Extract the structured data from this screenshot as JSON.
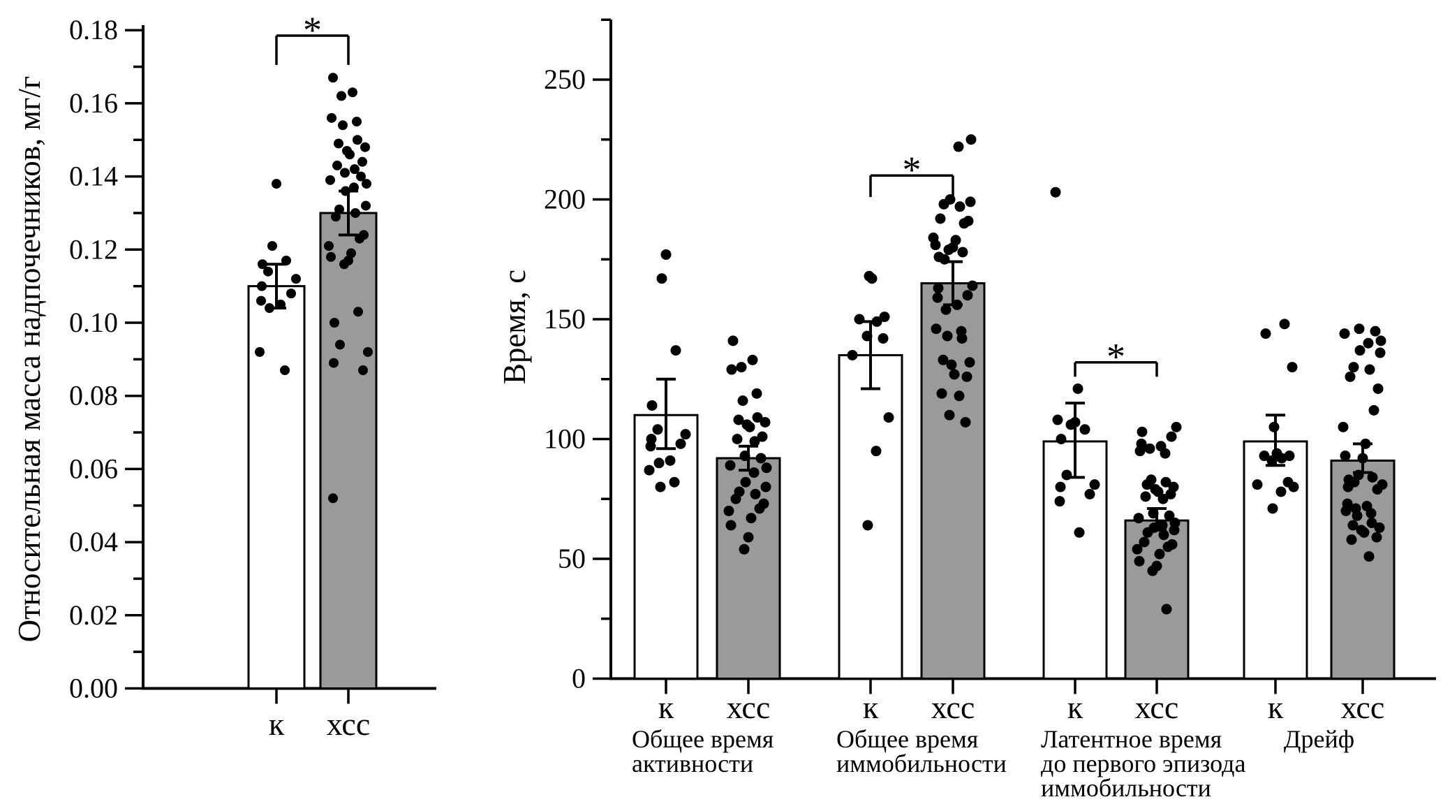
{
  "figure": {
    "colors": {
      "background": "#ffffff",
      "axis": "#000000",
      "text": "#000000",
      "dot": "#000000",
      "bar_stroke": "#000000",
      "bar_control_fill": "#ffffff",
      "bar_stress_fill": "#9a9a9a"
    }
  },
  "chart_data": [
    {
      "type": "bar",
      "id": "adrenal-mass-chart",
      "title": "",
      "xlabel": "",
      "ylabel": "Относительная масса надпочечников, мг/г",
      "ylim": [
        0,
        0.18
      ],
      "yticks_major_step": 0.02,
      "yticks_minor_step": 0.01,
      "ytick_decimals": 2,
      "grid": false,
      "legend": null,
      "groups": [
        {
          "caption_lines": [],
          "caption_align": "left",
          "bars": [
            {
              "category": "к",
              "style": "control",
              "mean": 0.11,
              "err_low": 0.104,
              "err_high": 0.116,
              "points": [
                0.138,
                0.121,
                0.117,
                0.116,
                0.114,
                0.112,
                0.11,
                0.108,
                0.106,
                0.105,
                0.104,
                0.092,
                0.087
              ]
            },
            {
              "category": "хсс",
              "style": "stress",
              "mean": 0.13,
              "err_low": 0.124,
              "err_high": 0.136,
              "points": [
                0.167,
                0.163,
                0.162,
                0.156,
                0.155,
                0.154,
                0.15,
                0.149,
                0.148,
                0.147,
                0.146,
                0.144,
                0.143,
                0.142,
                0.141,
                0.14,
                0.139,
                0.138,
                0.137,
                0.136,
                0.132,
                0.131,
                0.13,
                0.129,
                0.124,
                0.123,
                0.121,
                0.119,
                0.118,
                0.117,
                0.116,
                0.103,
                0.1,
                0.094,
                0.092,
                0.089,
                0.087,
                0.052
              ]
            }
          ],
          "significance": {
            "symbol": "*",
            "between": [
              0,
              1
            ],
            "bar_y": 0.1785,
            "leg_drop": 0.008
          }
        }
      ]
    },
    {
      "type": "bar",
      "id": "behavior-time-chart",
      "title": "",
      "xlabel": "",
      "ylabel": "Время, с",
      "ylim": [
        0,
        275
      ],
      "yticks_major_step": 50,
      "yticks_minor_step": 25,
      "ytick_decimals": 0,
      "grid": false,
      "legend": null,
      "groups": [
        {
          "caption_lines": [
            "Общее время",
            "активности"
          ],
          "caption_align": "left",
          "bars": [
            {
              "category": "к",
              "style": "control",
              "mean": 110,
              "err_low": 96,
              "err_high": 125,
              "points": [
                177,
                167,
                137,
                114,
                104,
                102,
                100,
                98,
                97,
                91,
                90,
                87,
                82,
                80
              ]
            },
            {
              "category": "хсс",
              "style": "stress",
              "mean": 92,
              "err_low": 87,
              "err_high": 97,
              "points": [
                141,
                133,
                130,
                129,
                119,
                116,
                109,
                108,
                107,
                106,
                105,
                101,
                100,
                99,
                93,
                92,
                89,
                88,
                86,
                82,
                80,
                78,
                77,
                75,
                73,
                71,
                70,
                67,
                64,
                59,
                54
              ]
            }
          ],
          "significance": null
        },
        {
          "caption_lines": [
            "Общее время",
            "иммобильности"
          ],
          "caption_align": "left",
          "bars": [
            {
              "category": "к",
              "style": "control",
              "mean": 135,
              "err_low": 121,
              "err_high": 149,
              "points": [
                168,
                167,
                151,
                150,
                149,
                143,
                142,
                135,
                109,
                95,
                64
              ]
            },
            {
              "category": "хсс",
              "style": "stress",
              "mean": 165,
              "err_low": 156,
              "err_high": 174,
              "points": [
                225,
                222,
                200,
                199,
                198,
                197,
                192,
                191,
                190,
                184,
                183,
                181,
                180,
                179,
                178,
                176,
                175,
                164,
                163,
                160,
                159,
                156,
                154,
                146,
                145,
                143,
                142,
                133,
                132,
                131,
                127,
                126,
                119,
                118,
                110,
                107
              ]
            }
          ],
          "significance": {
            "symbol": "*",
            "between": [
              0,
              1
            ],
            "bar_y": 210,
            "leg_drop": 9
          }
        },
        {
          "caption_lines": [
            "Латентное время",
            "до первого эпизода",
            "иммобильности"
          ],
          "caption_align": "left",
          "bars": [
            {
              "category": "к",
              "style": "control",
              "mean": 99,
              "err_low": 84,
              "err_high": 115,
              "points": [
                203,
                121,
                108,
                107,
                106,
                104,
                100,
                85,
                81,
                80,
                77,
                74,
                61
              ]
            },
            {
              "category": "хсс",
              "style": "stress",
              "mean": 66,
              "err_low": 62,
              "err_high": 71,
              "points": [
                105,
                103,
                101,
                98,
                97,
                96,
                95,
                94,
                83,
                82,
                81,
                80,
                79,
                78,
                77,
                76,
                75,
                69,
                68,
                67,
                65,
                64,
                63,
                62,
                61,
                60,
                57,
                56,
                55,
                54,
                52,
                49,
                47,
                45,
                29
              ]
            }
          ],
          "significance": {
            "symbol": "*",
            "between": [
              0,
              1
            ],
            "bar_y": 132,
            "leg_drop": 6
          }
        },
        {
          "caption_lines": [
            "Дрейф"
          ],
          "caption_align": "center",
          "bars": [
            {
              "category": "к",
              "style": "control",
              "mean": 99,
              "err_low": 89,
              "err_high": 110,
              "points": [
                148,
                144,
                130,
                105,
                94,
                93,
                93,
                92,
                91,
                82,
                81,
                80,
                78,
                71
              ]
            },
            {
              "category": "хсс",
              "style": "stress",
              "mean": 91,
              "err_low": 86,
              "err_high": 98,
              "points": [
                146,
                145,
                144,
                141,
                140,
                137,
                136,
                130,
                129,
                126,
                121,
                112,
                105,
                98,
                93,
                92,
                85,
                84,
                83,
                82,
                81,
                80,
                79,
                73,
                72,
                71,
                70,
                69,
                68,
                65,
                64,
                63,
                62,
                61,
                59,
                58,
                51
              ]
            }
          ],
          "significance": null
        }
      ]
    }
  ]
}
